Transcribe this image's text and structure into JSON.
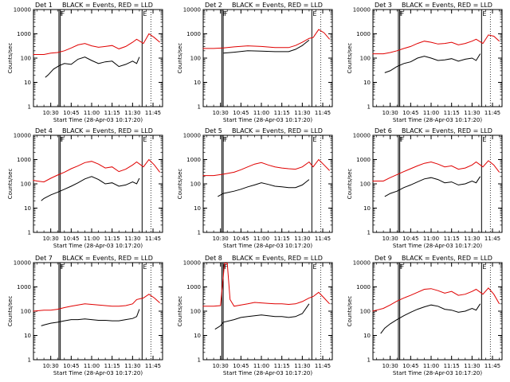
{
  "figure": {
    "start_label": "Start Time (28-Apr-03 10:17:20)",
    "ylabel": "Counts/sec",
    "legend": "BLACK = Events, RED = LLD",
    "x_ticks": [
      "10:30",
      "10:45",
      "11:00",
      "11:15",
      "11:30",
      "11:45"
    ],
    "y_ticks": [
      "1",
      "10",
      "100",
      "1000",
      "10000"
    ],
    "colors": {
      "events": "#000000",
      "lld": "#e00000"
    }
  },
  "chart_data": [
    {
      "type": "line",
      "title": "Det 1",
      "subtitle": "BLACK = Events, RED = LLD",
      "xlabel": "Start Time (28-Apr-03 10:17:20)",
      "ylabel": "Counts/sec",
      "xlim": [
        "10:17:20",
        "11:52"
      ],
      "ylim": [
        1,
        10000
      ],
      "yscale": "log",
      "markers": [
        "F",
        "F",
        "E"
      ],
      "marker_times": [
        "10:36",
        "10:37",
        "11:37"
      ],
      "series": [
        {
          "name": "Events",
          "color": "black",
          "x": [
            "10:26",
            "10:28",
            "10:32",
            "10:36",
            "10:40",
            "10:45",
            "10:50",
            "10:55",
            "11:00",
            "11:05",
            "11:10",
            "11:15",
            "11:20",
            "11:25",
            "11:30",
            "11:33",
            "11:35"
          ],
          "y": [
            16,
            20,
            35,
            48,
            60,
            55,
            90,
            110,
            80,
            60,
            70,
            75,
            45,
            55,
            75,
            60,
            110
          ]
        },
        {
          "name": "LLD",
          "color": "red",
          "x": [
            "10:17",
            "10:20",
            "10:25",
            "10:30",
            "10:35",
            "10:40",
            "10:45",
            "10:50",
            "10:55",
            "11:00",
            "11:05",
            "11:10",
            "11:15",
            "11:20",
            "11:25",
            "11:30",
            "11:33",
            "11:38",
            "11:42",
            "11:46",
            "11:50"
          ],
          "y": [
            140,
            140,
            140,
            160,
            170,
            200,
            260,
            350,
            400,
            320,
            280,
            300,
            330,
            240,
            300,
            450,
            600,
            400,
            1000,
            700,
            450
          ]
        }
      ]
    },
    {
      "type": "line",
      "title": "Det 2",
      "subtitle": "BLACK = Events, RED = LLD",
      "xlabel": "Start Time (28-Apr-03 10:17:20)",
      "ylabel": "Counts/sec",
      "xlim": [
        "10:17:20",
        "11:52"
      ],
      "ylim": [
        1,
        10000
      ],
      "yscale": "log",
      "markers": [
        "F",
        "F",
        "E"
      ],
      "marker_times": [
        "10:31",
        "10:32",
        "11:37"
      ],
      "series": [
        {
          "name": "Events",
          "color": "black",
          "x": [
            "10:32",
            "10:40",
            "10:50",
            "11:00",
            "11:10",
            "11:20",
            "11:25",
            "11:30",
            "11:35"
          ],
          "y": [
            160,
            175,
            200,
            195,
            185,
            185,
            230,
            330,
            550
          ]
        },
        {
          "name": "LLD",
          "color": "red",
          "x": [
            "10:17",
            "10:25",
            "10:32",
            "10:40",
            "10:50",
            "11:00",
            "11:10",
            "11:20",
            "11:25",
            "11:30",
            "11:35",
            "11:38",
            "11:42",
            "11:46",
            "11:50"
          ],
          "y": [
            250,
            250,
            260,
            290,
            320,
            300,
            270,
            270,
            330,
            450,
            650,
            700,
            1500,
            1100,
            600
          ]
        }
      ]
    },
    {
      "type": "line",
      "title": "Det 3",
      "subtitle": "BLACK = Events, RED = LLD",
      "xlabel": "Start Time (28-Apr-03 10:17:20)",
      "ylabel": "Counts/sec",
      "xlim": [
        "10:17:20",
        "11:52"
      ],
      "ylim": [
        1,
        10000
      ],
      "yscale": "log",
      "markers": [
        "F",
        "F",
        "E"
      ],
      "marker_times": [
        "10:36",
        "10:37",
        "11:37"
      ],
      "series": [
        {
          "name": "Events",
          "color": "black",
          "x": [
            "10:26",
            "10:30",
            "10:35",
            "10:40",
            "10:45",
            "10:50",
            "10:55",
            "11:00",
            "11:05",
            "11:10",
            "11:15",
            "11:20",
            "11:25",
            "11:30",
            "11:33",
            "11:36"
          ],
          "y": [
            25,
            30,
            45,
            60,
            70,
            100,
            120,
            100,
            80,
            85,
            95,
            75,
            90,
            100,
            80,
            150
          ]
        },
        {
          "name": "LLD",
          "color": "red",
          "x": [
            "10:17",
            "10:25",
            "10:30",
            "10:35",
            "10:40",
            "10:45",
            "10:50",
            "10:55",
            "11:00",
            "11:05",
            "11:10",
            "11:15",
            "11:20",
            "11:25",
            "11:30",
            "11:33",
            "11:38",
            "11:42",
            "11:46",
            "11:50"
          ],
          "y": [
            150,
            150,
            170,
            200,
            250,
            300,
            400,
            500,
            450,
            380,
            400,
            450,
            350,
            400,
            500,
            600,
            400,
            900,
            800,
            500
          ]
        }
      ]
    },
    {
      "type": "line",
      "title": "Det 4",
      "subtitle": "BLACK = Events, RED = LLD",
      "xlabel": "Start Time (28-Apr-03 10:17:20)",
      "ylabel": "Counts/sec",
      "xlim": [
        "10:17:20",
        "11:52"
      ],
      "ylim": [
        1,
        10000
      ],
      "yscale": "log",
      "markers": [
        "F",
        "F",
        "E"
      ],
      "marker_times": [
        "10:36",
        "10:37",
        "11:37"
      ],
      "series": [
        {
          "name": "Events",
          "color": "black",
          "x": [
            "10:23",
            "10:25",
            "10:30",
            "10:35",
            "10:40",
            "10:45",
            "10:50",
            "10:55",
            "11:00",
            "11:05",
            "11:10",
            "11:15",
            "11:20",
            "11:25",
            "11:30",
            "11:33",
            "11:35"
          ],
          "y": [
            20,
            25,
            35,
            45,
            60,
            80,
            110,
            160,
            200,
            150,
            100,
            110,
            80,
            90,
            120,
            100,
            170
          ]
        },
        {
          "name": "LLD",
          "color": "red",
          "x": [
            "10:17",
            "10:20",
            "10:25",
            "10:30",
            "10:35",
            "10:40",
            "10:45",
            "10:50",
            "10:55",
            "11:00",
            "11:05",
            "11:10",
            "11:15",
            "11:20",
            "11:25",
            "11:30",
            "11:33",
            "11:38",
            "11:42",
            "11:46",
            "11:50"
          ],
          "y": [
            140,
            130,
            120,
            170,
            230,
            300,
            420,
            550,
            750,
            850,
            650,
            450,
            500,
            320,
            400,
            600,
            800,
            500,
            1000,
            600,
            300
          ]
        }
      ]
    },
    {
      "type": "line",
      "title": "Det 5",
      "subtitle": "BLACK = Events, RED = LLD",
      "xlabel": "Start Time (28-Apr-03 10:17:20)",
      "ylabel": "Counts/sec",
      "xlim": [
        "10:17:20",
        "11:52"
      ],
      "ylim": [
        1,
        10000
      ],
      "yscale": "log",
      "markers": [
        "F",
        "F",
        "E"
      ],
      "marker_times": [
        "10:31",
        "10:32",
        "11:37"
      ],
      "series": [
        {
          "name": "Events",
          "color": "black",
          "x": [
            "10:28",
            "10:32",
            "10:40",
            "10:45",
            "10:50",
            "10:55",
            "11:00",
            "11:05",
            "11:10",
            "11:15",
            "11:20",
            "11:25",
            "11:30",
            "11:35"
          ],
          "y": [
            30,
            40,
            50,
            60,
            75,
            90,
            110,
            95,
            80,
            75,
            70,
            70,
            90,
            150
          ]
        },
        {
          "name": "LLD",
          "color": "red",
          "x": [
            "10:17",
            "10:25",
            "10:32",
            "10:40",
            "10:45",
            "10:50",
            "10:55",
            "11:00",
            "11:05",
            "11:10",
            "11:15",
            "11:20",
            "11:25",
            "11:30",
            "11:35",
            "11:38",
            "11:42",
            "11:46",
            "11:50"
          ],
          "y": [
            220,
            220,
            250,
            300,
            380,
            500,
            650,
            750,
            600,
            500,
            450,
            420,
            400,
            500,
            800,
            500,
            1000,
            600,
            350
          ]
        }
      ]
    },
    {
      "type": "line",
      "title": "Det 6",
      "subtitle": "BLACK = Events, RED = LLD",
      "xlabel": "Start Time (28-Apr-03 10:17:20)",
      "ylabel": "Counts/sec",
      "xlim": [
        "10:17:20",
        "11:52"
      ],
      "ylim": [
        1,
        10000
      ],
      "yscale": "log",
      "markers": [
        "F",
        "F",
        "E"
      ],
      "marker_times": [
        "10:36",
        "10:37",
        "11:37"
      ],
      "series": [
        {
          "name": "Events",
          "color": "black",
          "x": [
            "10:26",
            "10:30",
            "10:35",
            "10:40",
            "10:45",
            "10:50",
            "10:55",
            "11:00",
            "11:05",
            "11:10",
            "11:15",
            "11:20",
            "11:25",
            "11:30",
            "11:33",
            "11:36"
          ],
          "y": [
            30,
            40,
            50,
            70,
            90,
            120,
            160,
            180,
            150,
            110,
            120,
            90,
            100,
            130,
            110,
            200
          ]
        },
        {
          "name": "LLD",
          "color": "red",
          "x": [
            "10:17",
            "10:25",
            "10:30",
            "10:35",
            "10:40",
            "10:45",
            "10:50",
            "10:55",
            "11:00",
            "11:05",
            "11:10",
            "11:15",
            "11:20",
            "11:25",
            "11:30",
            "11:33",
            "11:38",
            "11:42",
            "11:46",
            "11:50"
          ],
          "y": [
            130,
            130,
            180,
            240,
            320,
            420,
            550,
            700,
            800,
            650,
            500,
            550,
            400,
            450,
            600,
            800,
            500,
            900,
            600,
            300
          ]
        }
      ]
    },
    {
      "type": "line",
      "title": "Det 7",
      "subtitle": "BLACK = Events, RED = LLD",
      "xlabel": "Start Time (28-Apr-03 10:17:20)",
      "ylabel": "Counts/sec",
      "xlim": [
        "10:17:20",
        "11:52"
      ],
      "ylim": [
        1,
        10000
      ],
      "yscale": "log",
      "markers": [
        "F",
        "F",
        "E"
      ],
      "marker_times": [
        "10:36",
        "10:37",
        "11:37"
      ],
      "series": [
        {
          "name": "Events",
          "color": "black",
          "x": [
            "10:23",
            "10:26",
            "10:30",
            "10:35",
            "10:40",
            "10:45",
            "10:50",
            "10:55",
            "11:00",
            "11:05",
            "11:10",
            "11:15",
            "11:20",
            "11:25",
            "11:30",
            "11:33",
            "11:35"
          ],
          "y": [
            25,
            28,
            32,
            35,
            40,
            45,
            45,
            48,
            45,
            42,
            42,
            40,
            40,
            45,
            50,
            60,
            120
          ]
        },
        {
          "name": "LLD",
          "color": "red",
          "x": [
            "10:17",
            "10:25",
            "10:30",
            "10:35",
            "10:40",
            "10:45",
            "10:50",
            "10:55",
            "11:00",
            "11:05",
            "11:10",
            "11:15",
            "11:20",
            "11:25",
            "11:30",
            "11:33",
            "11:38",
            "11:42",
            "11:46",
            "11:50"
          ],
          "y": [
            100,
            110,
            110,
            120,
            140,
            160,
            180,
            200,
            190,
            180,
            170,
            160,
            160,
            170,
            200,
            300,
            350,
            500,
            350,
            220
          ]
        }
      ]
    },
    {
      "type": "line",
      "title": "Det 8",
      "subtitle": "BLACK = Events, RED = LLD",
      "xlabel": "Start Time (28-Apr-03 10:17:20)",
      "ylabel": "Counts/sec",
      "xlim": [
        "10:17:20",
        "11:52"
      ],
      "ylim": [
        1,
        10000
      ],
      "yscale": "log",
      "markers": [
        "F",
        "F",
        "E"
      ],
      "marker_times": [
        "10:31",
        "10:32",
        "11:37"
      ],
      "series": [
        {
          "name": "Events",
          "color": "black",
          "x": [
            "10:26",
            "10:30",
            "10:32",
            "10:40",
            "10:45",
            "10:50",
            "10:55",
            "11:00",
            "11:05",
            "11:10",
            "11:15",
            "11:20",
            "11:25",
            "11:30",
            "11:35"
          ],
          "y": [
            18,
            25,
            35,
            45,
            55,
            60,
            65,
            70,
            65,
            60,
            60,
            55,
            60,
            80,
            200
          ]
        },
        {
          "name": "LLD",
          "color": "red",
          "x": [
            "10:17",
            "10:25",
            "10:30",
            "10:33",
            "10:35",
            "10:37",
            "10:40",
            "10:45",
            "10:50",
            "10:55",
            "11:00",
            "11:05",
            "11:10",
            "11:15",
            "11:20",
            "11:25",
            "11:30",
            "11:35",
            "11:38",
            "11:42",
            "11:46",
            "11:50"
          ],
          "y": [
            160,
            160,
            170,
            9500,
            9500,
            300,
            160,
            180,
            200,
            230,
            220,
            210,
            200,
            200,
            190,
            200,
            250,
            350,
            400,
            600,
            350,
            200
          ]
        }
      ]
    },
    {
      "type": "line",
      "title": "Det 9",
      "subtitle": "BLACK = Events, RED = LLD",
      "xlabel": "Start Time (28-Apr-03 10:17:20)",
      "ylabel": "Counts/sec",
      "xlim": [
        "10:17:20",
        "11:52"
      ],
      "ylim": [
        1,
        10000
      ],
      "yscale": "log",
      "markers": [
        "F",
        "F",
        "E"
      ],
      "marker_times": [
        "10:36",
        "10:37",
        "11:37"
      ],
      "series": [
        {
          "name": "Events",
          "color": "black",
          "x": [
            "10:23",
            "10:26",
            "10:30",
            "10:35",
            "10:40",
            "10:45",
            "10:50",
            "10:55",
            "11:00",
            "11:05",
            "11:10",
            "11:15",
            "11:20",
            "11:25",
            "11:30",
            "11:33",
            "11:36"
          ],
          "y": [
            12,
            20,
            30,
            45,
            65,
            90,
            120,
            150,
            180,
            160,
            120,
            110,
            90,
            100,
            130,
            110,
            200
          ]
        },
        {
          "name": "LLD",
          "color": "red",
          "x": [
            "10:17",
            "10:20",
            "10:25",
            "10:30",
            "10:35",
            "10:40",
            "10:45",
            "10:50",
            "10:55",
            "11:00",
            "11:05",
            "11:10",
            "11:15",
            "11:20",
            "11:25",
            "11:30",
            "11:33",
            "11:38",
            "11:42",
            "11:46",
            "11:50"
          ],
          "y": [
            100,
            110,
            130,
            180,
            260,
            350,
            450,
            600,
            800,
            850,
            700,
            550,
            650,
            450,
            500,
            650,
            800,
            500,
            900,
            500,
            200
          ]
        }
      ]
    }
  ]
}
